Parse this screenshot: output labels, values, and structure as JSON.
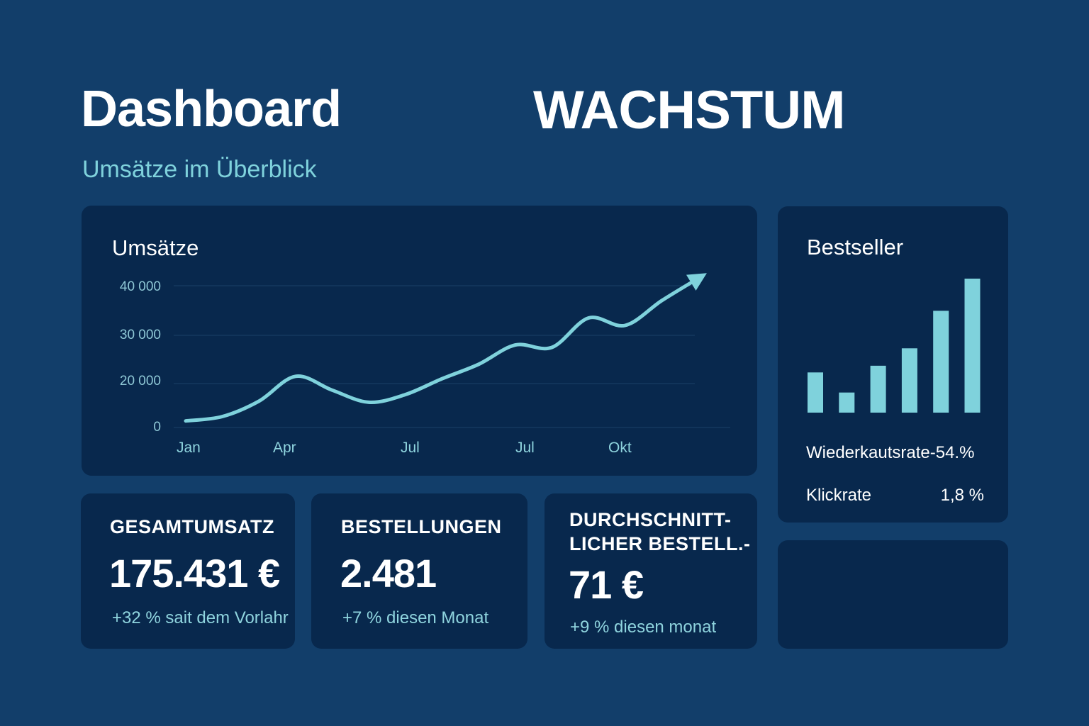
{
  "header": {
    "title": "Dashboard",
    "hero": "WACHSTUM",
    "subtitle": "Umsätze im Überblick"
  },
  "sales_card": {
    "title": "Umsätze"
  },
  "bestseller_card": {
    "title": "Bestseller",
    "metrics": [
      {
        "label": "Wiederkautsrate-54.%",
        "value": ""
      },
      {
        "label": "Klickrate",
        "value": "1,8 %"
      }
    ]
  },
  "kpis": [
    {
      "label_lines": [
        "GESAMTUMSATZ"
      ],
      "value": "175.431 €",
      "delta": "+32 % sait dem Vorlahr"
    },
    {
      "label_lines": [
        "BESTELLUNGEN"
      ],
      "value": "2.481",
      "delta": "+7 % diesen Monat"
    },
    {
      "label_lines": [
        "DURCHSCHNITT-",
        "LICHER BESTELL.-"
      ],
      "value": "71 €",
      "delta": "+9 % diesen monat"
    }
  ],
  "colors": {
    "background": "#123e6a",
    "card": "#08284d",
    "accent": "#7fd2dc"
  },
  "chart_data": [
    {
      "type": "line",
      "title": "Umsätze",
      "x_tick_labels": [
        "Jan",
        "Apr",
        "Jul",
        "Jul",
        "Okt"
      ],
      "y_tick_labels": [
        "0",
        "20 000",
        "30 000",
        "40 000"
      ],
      "ylim": [
        0,
        40000
      ],
      "grid": true,
      "series": [
        {
          "values": [
            3000,
            5000,
            12000,
            21500,
            17000,
            11500,
            15000,
            21000,
            24000,
            28000,
            27500,
            33500,
            32000,
            37000,
            41500
          ]
        }
      ]
    },
    {
      "type": "bar",
      "title": "Bestseller",
      "values": [
        30,
        15,
        35,
        48,
        76,
        100
      ]
    }
  ]
}
